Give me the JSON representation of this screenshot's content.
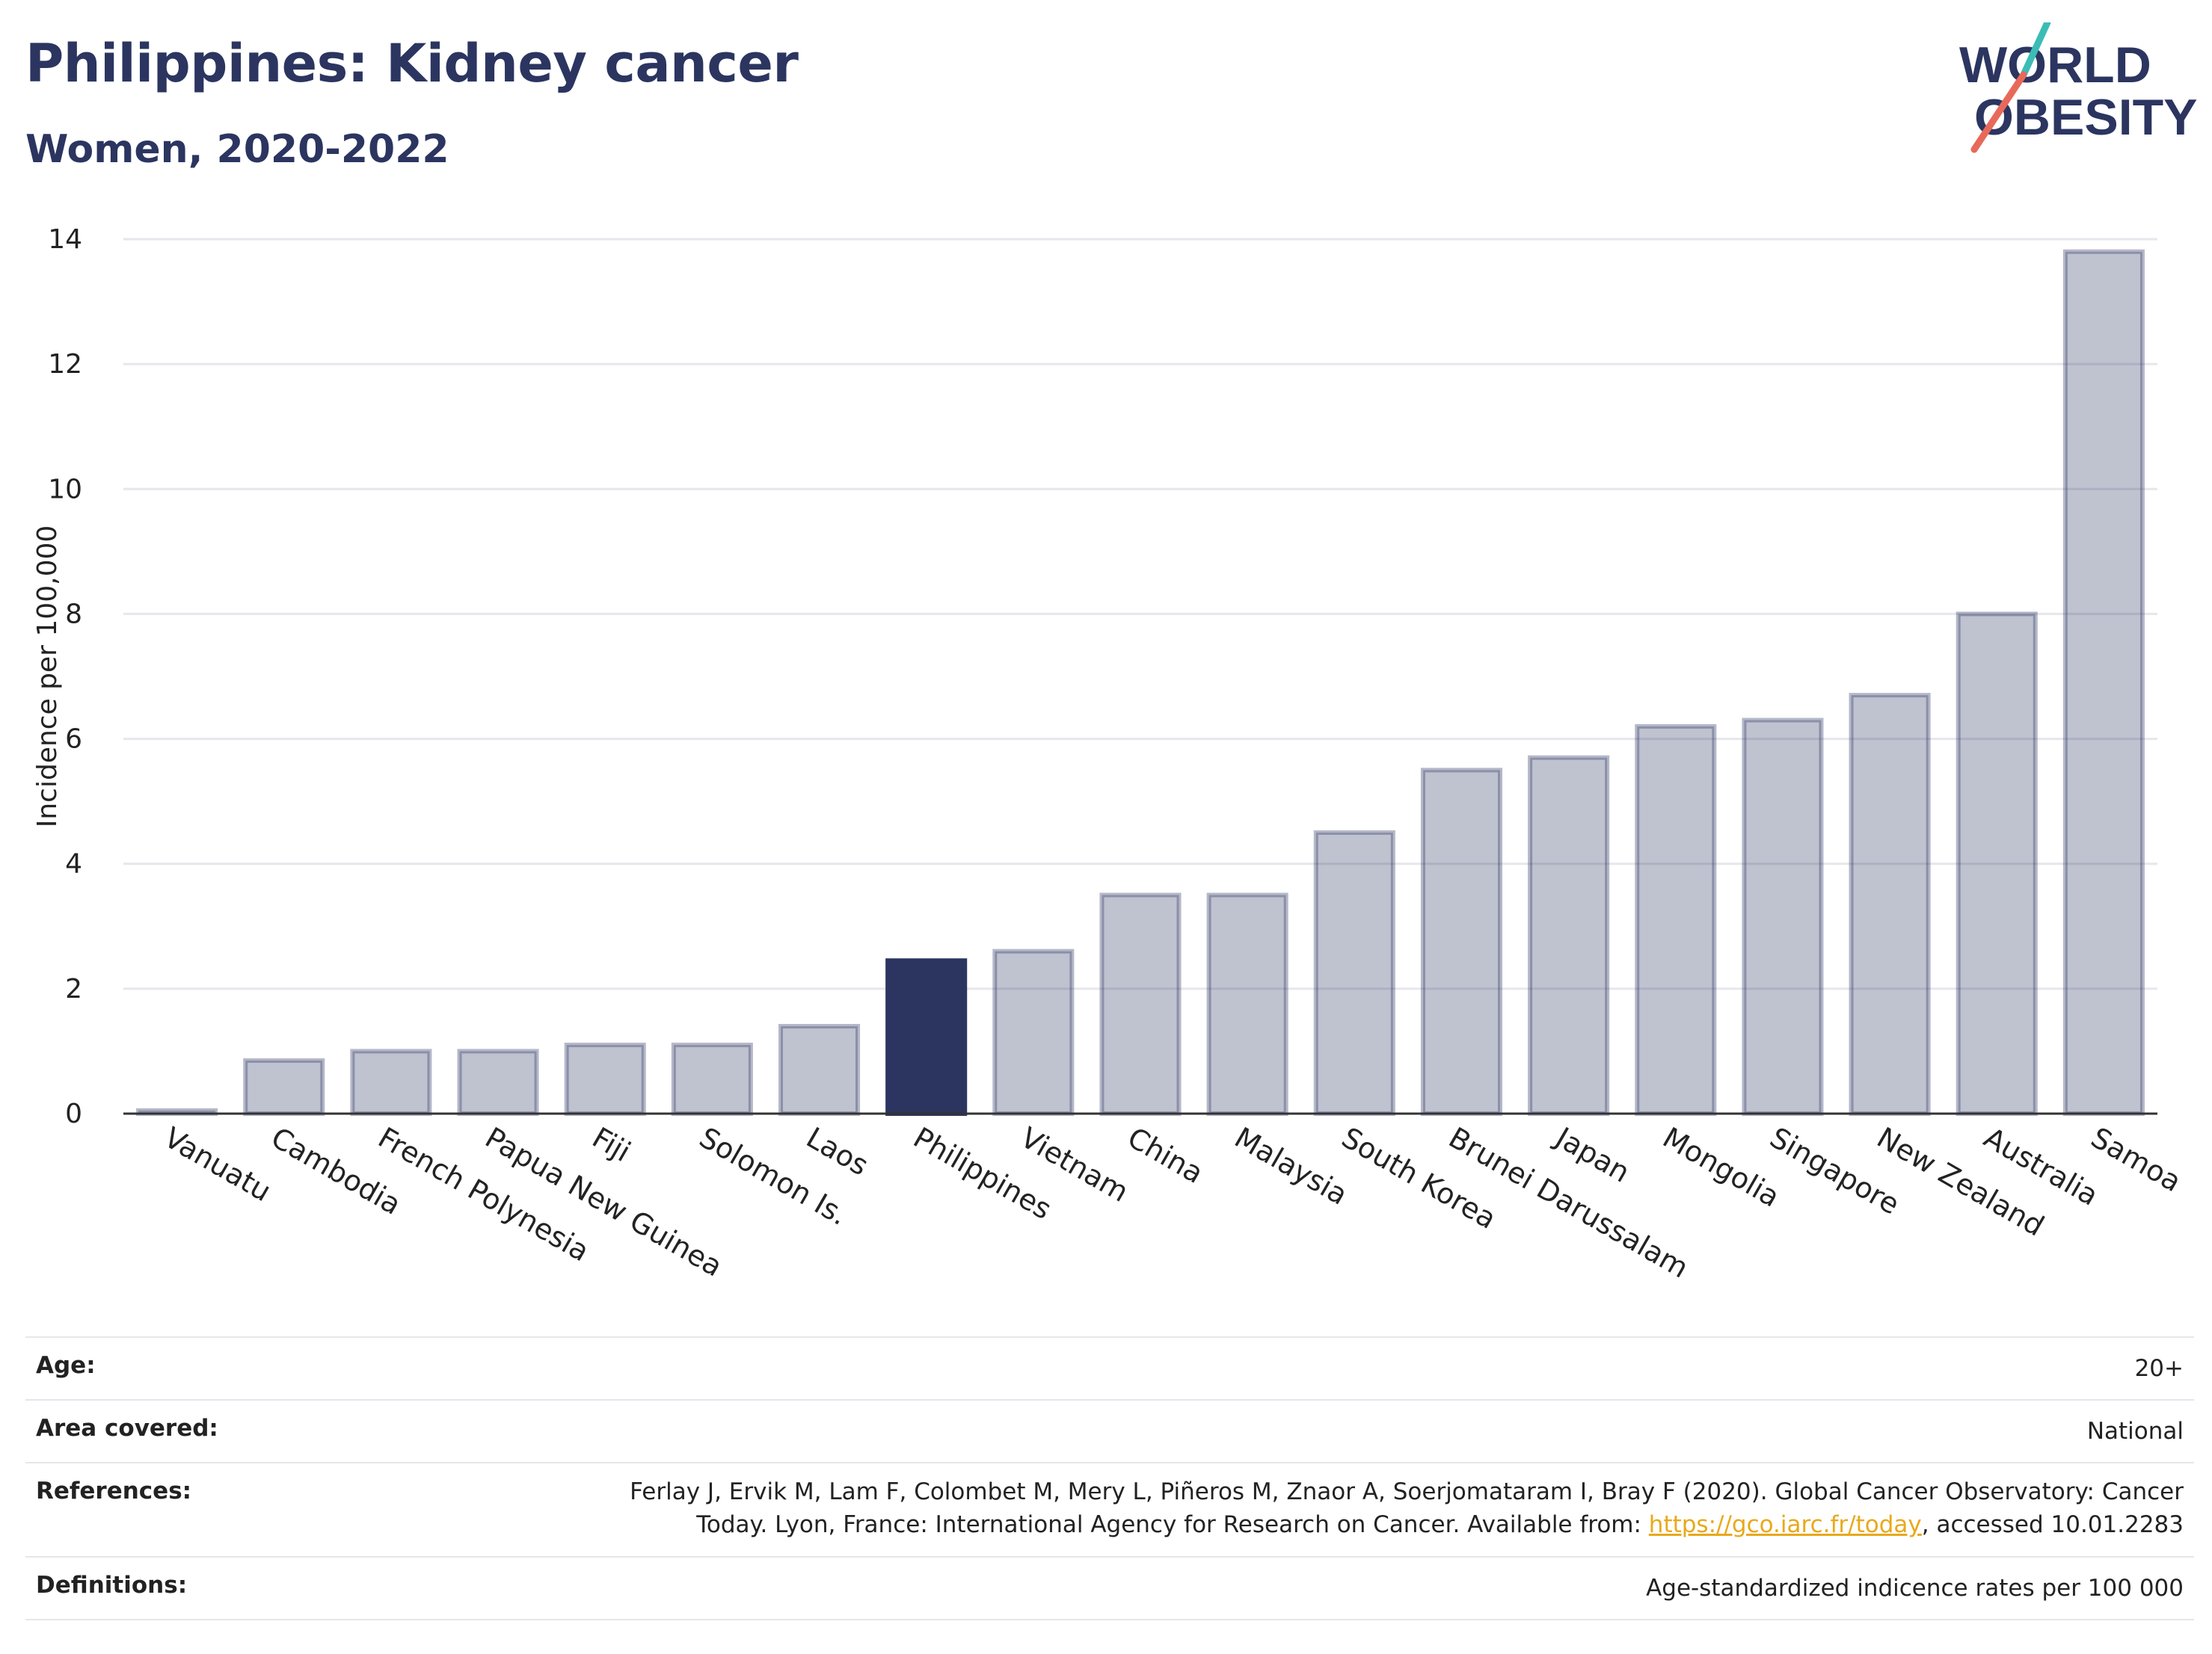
{
  "header": {
    "title": "Philippines: Kidney cancer",
    "subtitle": "Women, 2020-2022"
  },
  "logo": {
    "line1": "WORLD",
    "line2": "OBESITY",
    "colors": {
      "text": "#2b3560",
      "teal": "#3cbcb6",
      "coral": "#e8695a"
    }
  },
  "chart_data": {
    "type": "bar",
    "title": "Philippines: Kidney cancer",
    "subtitle": "Women, 2020-2022",
    "xlabel": "",
    "ylabel": "Incidence per 100,000",
    "ylim": [
      0,
      14
    ],
    "yticks": [
      0,
      2,
      4,
      6,
      8,
      10,
      12,
      14
    ],
    "grid": true,
    "legend": "none",
    "highlight": "Philippines",
    "colors": {
      "default": "#2b3560",
      "highlight": "#2b3560"
    },
    "categories": [
      "Vanuatu",
      "Cambodia",
      "French Polynesia",
      "Papua New Guinea",
      "Fiji",
      "Solomon Is.",
      "Laos",
      "Philippines",
      "Vietnam",
      "China",
      "Malaysia",
      "South Korea",
      "Brunei Darussalam",
      "Japan",
      "Mongolia",
      "Singapore",
      "New Zealand",
      "Australia",
      "Samoa"
    ],
    "values": [
      0.05,
      0.85,
      1.0,
      1.0,
      1.1,
      1.1,
      1.4,
      2.45,
      2.6,
      3.5,
      3.5,
      4.5,
      5.5,
      5.7,
      6.2,
      6.3,
      6.7,
      8.0,
      13.8
    ]
  },
  "info": {
    "age_label": "Age:",
    "age_value": "20+",
    "area_label": "Area covered:",
    "area_value": "National",
    "references_label": "References:",
    "references_line1": "Ferlay J, Ervik M, Lam F, Colombet M, Mery L, Piñeros M, Znaor A, Soerjomataram I, Bray F (2020). Global Cancer Observatory: Cancer",
    "references_line2_pre": "Today. Lyon, France: International Agency for Research on Cancer. Available from: ",
    "references_link": "https://gco.iarc.fr/today",
    "references_line2_post": ", accessed 10.01.2283",
    "definitions_label": "Definitions:",
    "definitions_value": "Age-standardized indicence rates per 100 000"
  }
}
